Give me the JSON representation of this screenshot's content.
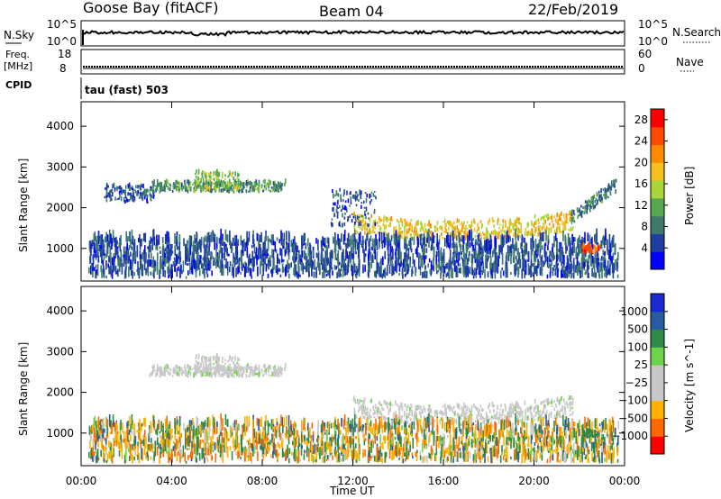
{
  "header": {
    "station": "Goose Bay (fitACF)",
    "beam": "Beam 04",
    "date": "22/Feb/2019"
  },
  "noise_panel": {
    "left_label": "N.Sky",
    "right_label": "N.Search",
    "ticks": [
      "10^5",
      "10^0"
    ],
    "right_ticks": [
      "10^5",
      "10^0"
    ]
  },
  "freq_panel": {
    "left_label_1": "Freq.",
    "left_label_2": "[MHz]",
    "left_ticks": [
      "18",
      "8"
    ],
    "right_label": "Nave",
    "right_ticks": [
      "60",
      "0"
    ],
    "cpid_label": "CPID",
    "mode_text": "tau (fast) 503"
  },
  "colors": {
    "power_scale": [
      "#0000ff",
      "#1f3fa0",
      "#3e7a6a",
      "#56a850",
      "#a8d63a",
      "#f4c020",
      "#ff8c00",
      "#ff4a00",
      "#ff0000"
    ],
    "velocity_scale": [
      "#ff0000",
      "#ff6a00",
      "#ffb000",
      "#c8c8c8",
      "#c8c8c8",
      "#6ed34a",
      "#2f8a45",
      "#2a5aa0",
      "#1a2ad0"
    ]
  },
  "chart_data": [
    {
      "type": "heatmap",
      "panel": "power",
      "ylabel": "Slant Range [km]",
      "yticks": [
        "1000",
        "2000",
        "3000",
        "4000"
      ],
      "ylim": [
        200,
        4600
      ],
      "xlim": [
        0,
        24
      ],
      "colorbar_label": "Power [dB]",
      "colorbar_ticks": [
        "4",
        "8",
        "12",
        "16",
        "20",
        "24",
        "28"
      ],
      "colorbar_range": [
        0,
        30
      ],
      "regions": [
        {
          "name": "early F-region band",
          "t": [
            3.0,
            9.0
          ],
          "range_km": [
            2350,
            2600
          ],
          "level_db": 10
        },
        {
          "name": "early bump",
          "t": [
            5.0,
            7.0
          ],
          "range_km": [
            2400,
            2850
          ],
          "level_db": 14
        },
        {
          "name": "scattered band",
          "t": [
            1.0,
            3.2
          ],
          "range_km": [
            2100,
            2500
          ],
          "level_db": 6
        },
        {
          "name": "afternoon arc",
          "t": [
            12.0,
            21.7
          ],
          "range_km": [
            1200,
            1900
          ],
          "level_db": 18
        },
        {
          "name": "arc upper edge",
          "t": [
            11.0,
            13.0
          ],
          "range_km": [
            1500,
            2400
          ],
          "level_db": 6
        },
        {
          "name": "late rise",
          "t": [
            21.6,
            23.6
          ],
          "range_km": [
            1500,
            2650
          ],
          "level_db": 8
        },
        {
          "name": "near-range echoes",
          "t": [
            0.3,
            23.7
          ],
          "range_km": [
            250,
            1200
          ],
          "level_db": 6
        },
        {
          "name": "late hot spot",
          "t": [
            22.1,
            22.9
          ],
          "range_km": [
            850,
            1050
          ],
          "level_db": 26
        }
      ]
    },
    {
      "type": "heatmap",
      "panel": "velocity",
      "ylabel": "Slant Range [km]",
      "yticks": [
        "1000",
        "2000",
        "3000",
        "4000"
      ],
      "ylim": [
        200,
        4600
      ],
      "xlim": [
        0,
        24
      ],
      "xlabel": "Time UT",
      "xticks": [
        "00:00",
        "04:00",
        "08:00",
        "12:00",
        "16:00",
        "20:00",
        "00:00"
      ],
      "colorbar_label": "Velocity [m s^-1]",
      "colorbar_ticks": [
        "1000",
        "500",
        "100",
        "25",
        "-25",
        "-100",
        "-500",
        "-1000"
      ],
      "regions": [
        {
          "name": "early F-region band",
          "t": [
            3.0,
            9.0
          ],
          "range_km": [
            2350,
            2600
          ],
          "velocity": 0
        },
        {
          "name": "early bump",
          "t": [
            5.0,
            7.0
          ],
          "range_km": [
            2400,
            2850
          ],
          "velocity": 0
        },
        {
          "name": "afternoon arc",
          "t": [
            12.0,
            21.7
          ],
          "range_km": [
            1200,
            1900
          ],
          "velocity": 0
        },
        {
          "name": "near-range echoes",
          "t": [
            0.3,
            23.7
          ],
          "range_km": [
            250,
            1200
          ],
          "velocity": -50
        },
        {
          "name": "late hot spot",
          "t": [
            22.1,
            22.9
          ],
          "range_km": [
            850,
            1050
          ],
          "velocity": 150
        }
      ]
    }
  ]
}
